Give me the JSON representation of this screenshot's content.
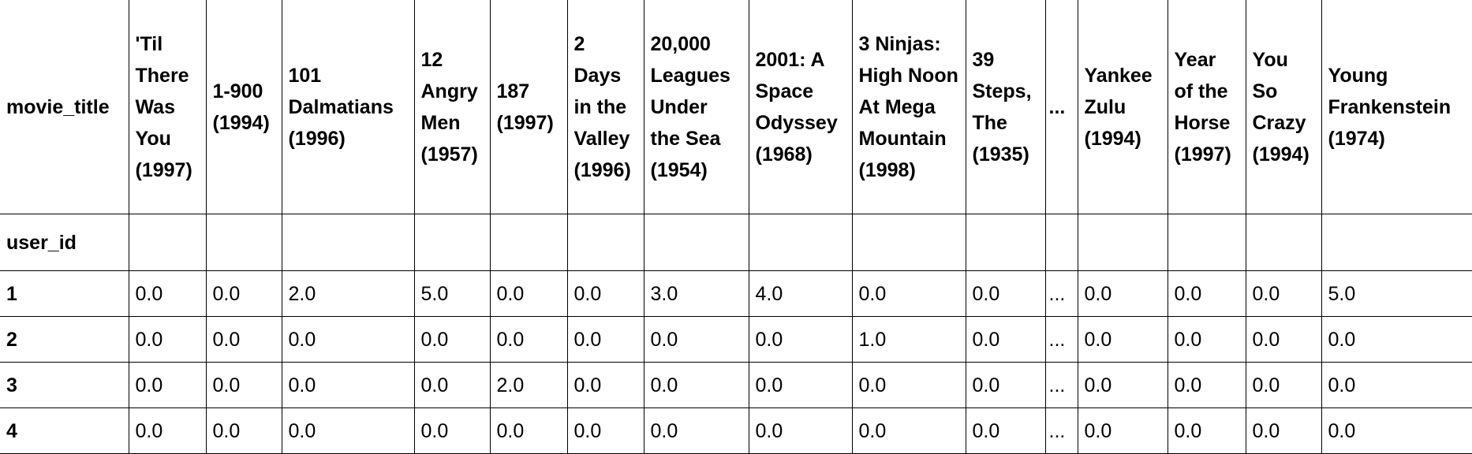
{
  "table": {
    "columns_name": "movie_title",
    "index_name": "user_id",
    "headers": [
      "'Til There Was You (1997)",
      "1-900 (1994)",
      "101 Dalmatians (1996)",
      "12 Angry Men (1957)",
      "187 (1997)",
      "2 Days in the Valley (1996)",
      "20,000 Leagues Under the Sea (1954)",
      "2001: A Space Odyssey (1968)",
      "3 Ninjas: High Noon At Mega Mountain (1998)",
      "39 Steps, The (1935)",
      "...",
      "Yankee Zulu (1994)",
      "Year of the Horse (1997)",
      "You So Crazy (1994)",
      "Young Frankenstein (1974)"
    ],
    "rows": [
      {
        "index": "1",
        "values": [
          "0.0",
          "0.0",
          "2.0",
          "5.0",
          "0.0",
          "0.0",
          "3.0",
          "4.0",
          "0.0",
          "0.0",
          "...",
          "0.0",
          "0.0",
          "0.0",
          "5.0"
        ]
      },
      {
        "index": "2",
        "values": [
          "0.0",
          "0.0",
          "0.0",
          "0.0",
          "0.0",
          "0.0",
          "0.0",
          "0.0",
          "1.0",
          "0.0",
          "...",
          "0.0",
          "0.0",
          "0.0",
          "0.0"
        ]
      },
      {
        "index": "3",
        "values": [
          "0.0",
          "0.0",
          "0.0",
          "0.0",
          "2.0",
          "0.0",
          "0.0",
          "0.0",
          "0.0",
          "0.0",
          "...",
          "0.0",
          "0.0",
          "0.0",
          "0.0"
        ]
      },
      {
        "index": "4",
        "values": [
          "0.0",
          "0.0",
          "0.0",
          "0.0",
          "0.0",
          "0.0",
          "0.0",
          "0.0",
          "0.0",
          "0.0",
          "...",
          "0.0",
          "0.0",
          "0.0",
          "0.0"
        ]
      }
    ]
  }
}
